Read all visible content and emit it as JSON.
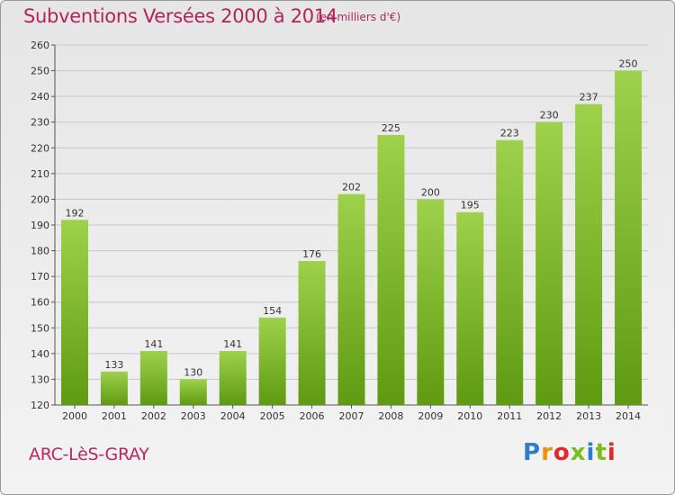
{
  "header": {
    "title": "Subventions Versées 2000 à 2014",
    "unit": "(en milliers d'€)"
  },
  "footer": {
    "commune": "ARC-LèS-GRAY",
    "brand": "Proxiti"
  },
  "colors": {
    "title": "#b4245a",
    "bar_top": "#9ed14c",
    "bar_bottom": "#5f9a12",
    "grid": "#c8c8c8"
  },
  "chart_data": {
    "type": "bar",
    "title": "Subventions Versées 2000 à 2014",
    "xlabel": "",
    "ylabel": "",
    "categories": [
      "2000",
      "2001",
      "2002",
      "2003",
      "2004",
      "2005",
      "2006",
      "2007",
      "2008",
      "2009",
      "2010",
      "2011",
      "2012",
      "2013",
      "2014"
    ],
    "values": [
      192,
      133,
      141,
      130,
      141,
      154,
      176,
      202,
      225,
      200,
      195,
      223,
      230,
      237,
      250
    ],
    "ylim": [
      120,
      260
    ],
    "yticks": [
      120,
      130,
      140,
      150,
      160,
      170,
      180,
      190,
      200,
      210,
      220,
      230,
      240,
      250,
      260
    ],
    "grid": true,
    "data_labels": true
  }
}
